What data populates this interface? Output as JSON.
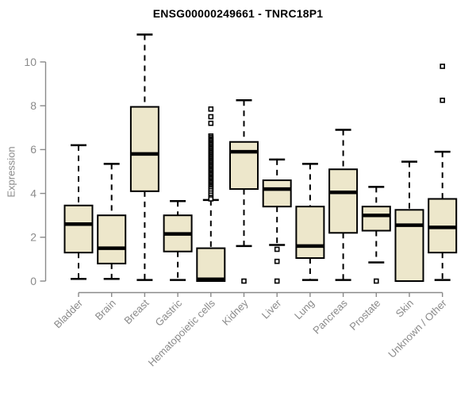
{
  "title": "ENSG00000249661 - TNRC18P1",
  "colors": {
    "background": "#ffffff",
    "box_fill": "#ede7cb",
    "box_border": "#000000",
    "median": "#000000",
    "whisker": "#000000",
    "outlier_stroke": "#000000",
    "outlier_fill": "#ffffff",
    "axis": "#8a8a8a",
    "tick_label": "#8a8a8a",
    "title": "#000000"
  },
  "chart_data": {
    "type": "boxplot",
    "title": "ENSG00000249661 - TNRC18P1",
    "xlabel": "",
    "ylabel": "Expression",
    "ylim": [
      0,
      10
    ],
    "yticks": [
      0,
      2,
      4,
      6,
      8,
      10
    ],
    "grid": "off",
    "legend": "none",
    "categories": [
      "Bladder",
      "Brain",
      "Breast",
      "Gastric",
      "Hematopoietic cells",
      "Kidney",
      "Liver",
      "Lung",
      "Pancreas",
      "Prostate",
      "Skin",
      "Unknown / Other"
    ],
    "series": [
      {
        "name": "Bladder",
        "whisker_low": 0.1,
        "q1": 1.3,
        "median": 2.6,
        "q3": 3.45,
        "whisker_high": 6.2,
        "outliers": []
      },
      {
        "name": "Brain",
        "whisker_low": 0.1,
        "q1": 0.8,
        "median": 1.5,
        "q3": 3.0,
        "whisker_high": 5.35,
        "outliers": []
      },
      {
        "name": "Breast",
        "whisker_low": 0.05,
        "q1": 4.1,
        "median": 5.8,
        "q3": 7.95,
        "whisker_high": 11.25,
        "outliers": []
      },
      {
        "name": "Gastric",
        "whisker_low": 0.05,
        "q1": 1.35,
        "median": 2.15,
        "q3": 3.0,
        "whisker_high": 3.65,
        "outliers": []
      },
      {
        "name": "Hematopoietic cells",
        "whisker_low": 0.0,
        "q1": 0.0,
        "median": 0.08,
        "q3": 1.5,
        "whisker_high": 3.7,
        "outliers": [
          7.85,
          7.5,
          7.2,
          6.62,
          6.55,
          6.48,
          6.42,
          6.36,
          6.3,
          6.24,
          6.18,
          6.12,
          6.06,
          6.0,
          5.94,
          5.88,
          5.82,
          5.76,
          5.7,
          5.64,
          5.58,
          5.52,
          5.46,
          5.4,
          5.34,
          5.28,
          5.22,
          5.16,
          5.1,
          5.04,
          4.98,
          4.92,
          4.86,
          4.8,
          4.74,
          4.68,
          4.62,
          4.56,
          4.5,
          4.44,
          4.38,
          4.32,
          4.26,
          4.2,
          4.12,
          4.02,
          3.92,
          3.82,
          3.75
        ]
      },
      {
        "name": "Kidney",
        "whisker_low": 1.6,
        "q1": 4.2,
        "median": 5.9,
        "q3": 6.35,
        "whisker_high": 8.25,
        "outliers": [
          0.0
        ]
      },
      {
        "name": "Liver",
        "whisker_low": 1.65,
        "q1": 3.4,
        "median": 4.2,
        "q3": 4.6,
        "whisker_high": 5.55,
        "outliers": [
          1.45,
          0.9,
          0.0
        ]
      },
      {
        "name": "Lung",
        "whisker_low": 0.05,
        "q1": 1.05,
        "median": 1.6,
        "q3": 3.4,
        "whisker_high": 5.35,
        "outliers": []
      },
      {
        "name": "Pancreas",
        "whisker_low": 0.05,
        "q1": 2.2,
        "median": 4.05,
        "q3": 5.1,
        "whisker_high": 6.9,
        "outliers": []
      },
      {
        "name": "Prostate",
        "whisker_low": 0.85,
        "q1": 2.3,
        "median": 3.0,
        "q3": 3.4,
        "whisker_high": 4.3,
        "outliers": [
          0.0
        ]
      },
      {
        "name": "Skin",
        "whisker_low": 0.0,
        "q1": 0.0,
        "median": 2.55,
        "q3": 3.25,
        "whisker_high": 5.45,
        "outliers": []
      },
      {
        "name": "Unknown / Other",
        "whisker_low": 0.05,
        "q1": 1.3,
        "median": 2.45,
        "q3": 3.75,
        "whisker_high": 5.9,
        "outliers": [
          9.8,
          8.25
        ]
      }
    ]
  }
}
